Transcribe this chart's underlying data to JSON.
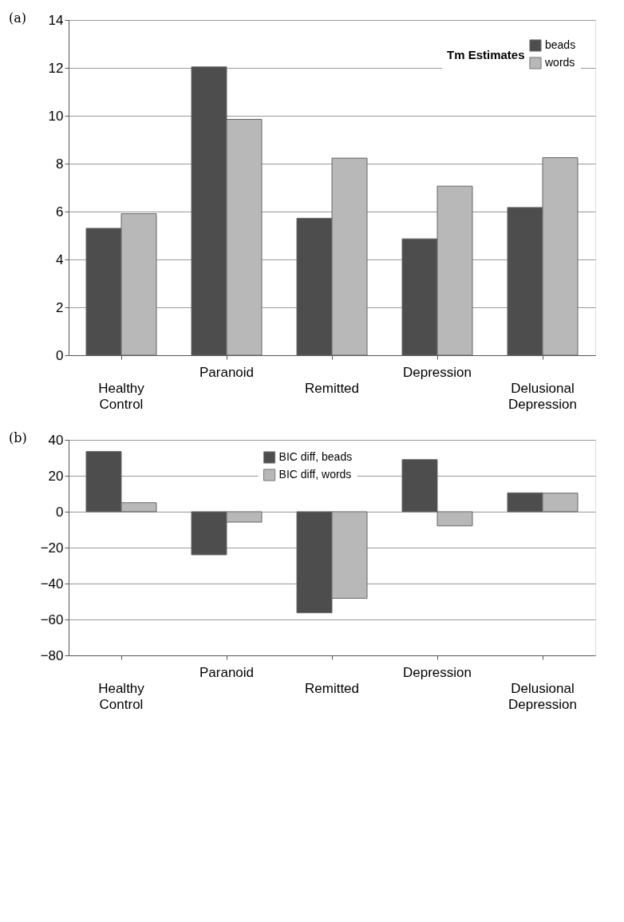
{
  "chart_data": [
    {
      "type": "bar",
      "categories": [
        "Healthy Control",
        "Paranoid",
        "Remitted",
        "Depression",
        "Delusional Depression"
      ],
      "legend_title": "Tm Estimates",
      "annotations": [
        "(a)"
      ],
      "series": [
        {
          "name": "beads",
          "color": "#4d4d4d",
          "values": [
            5.3,
            12.04,
            5.72,
            4.86,
            6.17
          ]
        },
        {
          "name": "words",
          "color": "#b8b8b8",
          "values": [
            5.91,
            9.85,
            8.23,
            7.06,
            8.25
          ]
        }
      ],
      "ylim": [
        0,
        14
      ],
      "yticks": [
        0,
        2,
        4,
        6,
        8,
        10,
        12,
        14
      ],
      "grid": "y",
      "legend": "top right"
    },
    {
      "type": "bar",
      "categories": [
        "Healthy Control",
        "Paranoid",
        "Remitted",
        "Depression",
        "Delusional Depression"
      ],
      "annotations": [
        "(b)"
      ],
      "series": [
        {
          "name": "BIC diff, beads",
          "color": "#4d4d4d",
          "values": [
            33.5,
            -24,
            -56.3,
            29,
            10.5
          ]
        },
        {
          "name": "BIC diff, words",
          "color": "#b8b8b8",
          "values": [
            5,
            -5.8,
            -48.2,
            -7.9,
            10.3
          ]
        }
      ],
      "ylim": [
        -80,
        40
      ],
      "yticks": [
        -80,
        -60,
        -40,
        -20,
        0,
        20,
        40
      ],
      "grid": "y",
      "legend": "top"
    }
  ]
}
